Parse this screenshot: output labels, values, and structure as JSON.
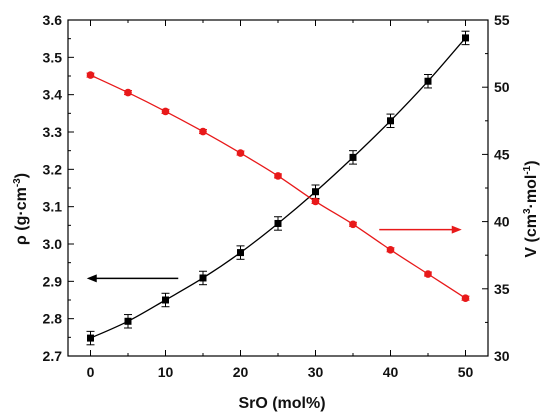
{
  "chart_data": {
    "type": "line",
    "xlabel": "SrO (mol%)",
    "xlim": [
      -3,
      53
    ],
    "x_ticks": [
      "0",
      "10",
      "20",
      "30",
      "40",
      "50"
    ],
    "x": [
      0,
      5,
      10,
      15,
      20,
      25,
      30,
      35,
      40,
      45,
      50
    ],
    "ylabel_left": {
      "main": "ρ (g·cm",
      "sup": "-3",
      "tail": ")"
    },
    "ylim_left": [
      2.7,
      3.6
    ],
    "y_ticks_left": [
      "2.7",
      "2.8",
      "2.9",
      "3.0",
      "3.1",
      "3.2",
      "3.3",
      "3.4",
      "3.5",
      "3.6"
    ],
    "ylabel_right": {
      "main": "V (cm",
      "sup1": "3",
      "mid": "·mol",
      "sup2": "-1",
      "tail": ")"
    },
    "ylim_right": [
      30,
      55
    ],
    "y_ticks_right": [
      "30",
      "35",
      "40",
      "45",
      "50",
      "55"
    ],
    "grid": false,
    "series": [
      {
        "axis": "left",
        "color": "#000000",
        "marker": "square",
        "values": [
          2.748,
          2.793,
          2.85,
          2.909,
          2.977,
          3.055,
          3.14,
          3.232,
          3.33,
          3.436,
          3.552
        ],
        "errors": [
          0.018,
          0.018,
          0.018,
          0.018,
          0.018,
          0.018,
          0.018,
          0.018,
          0.018,
          0.018,
          0.018
        ]
      },
      {
        "axis": "right",
        "color": "#e8191a",
        "marker": "circle",
        "values": [
          50.9,
          49.6,
          48.2,
          46.7,
          45.1,
          43.4,
          41.5,
          39.8,
          37.9,
          36.1,
          34.3
        ],
        "errors": [
          0.15,
          0.15,
          0.15,
          0.15,
          0.15,
          0.15,
          0.15,
          0.15,
          0.15,
          0.15,
          0.15
        ]
      }
    ],
    "annotations": [
      {
        "type": "arrow",
        "direction": "left",
        "color": "#000000"
      },
      {
        "type": "arrow",
        "direction": "right",
        "color": "#e8191a"
      }
    ]
  }
}
